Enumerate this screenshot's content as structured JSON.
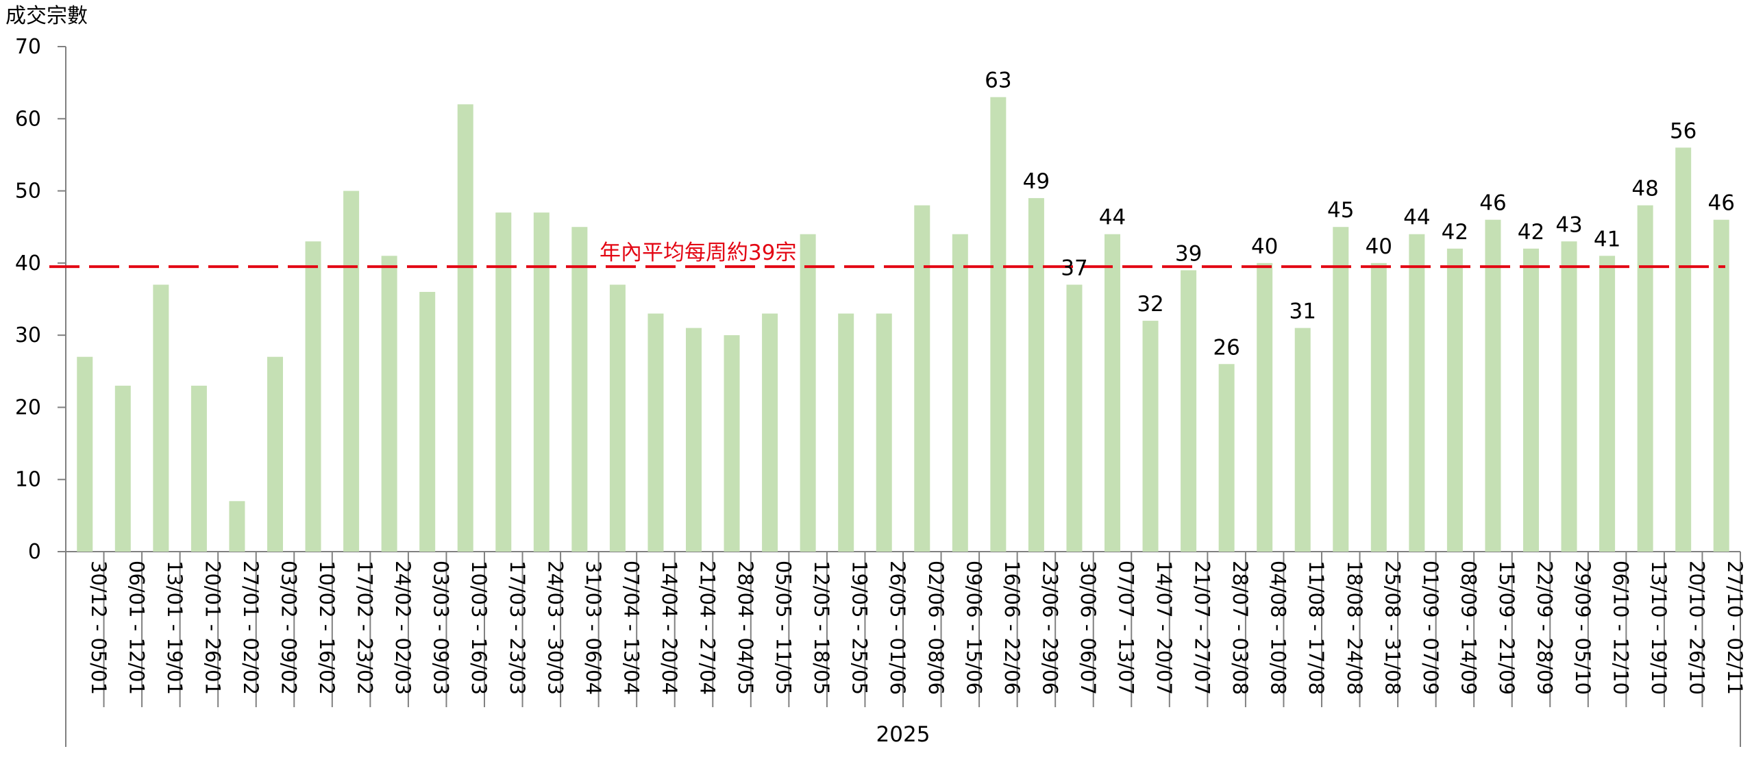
{
  "chart_data": {
    "type": "bar",
    "ylabel": "成交宗數",
    "xgroup_label": "2025",
    "ylim": [
      0,
      70
    ],
    "yticks": [
      0,
      10,
      20,
      30,
      40,
      50,
      60,
      70
    ],
    "grid": false,
    "categories": [
      "30/12 - 05/01",
      "06/01 - 12/01",
      "13/01 - 19/01",
      "20/01 - 26/01",
      "27/01 - 02/02",
      "03/02 - 09/02",
      "10/02 - 16/02",
      "17/02 - 23/02",
      "24/02 - 02/03",
      "03/03 - 09/03",
      "10/03 - 16/03",
      "17/03 - 23/03",
      "24/03 - 30/03",
      "31/03 - 06/04",
      "07/04 - 13/04",
      "14/04 - 20/04",
      "21/04 - 27/04",
      "28/04 - 04/05",
      "05/05 - 11/05",
      "12/05 - 18/05",
      "19/05 - 25/05",
      "26/05 - 01/06",
      "02/06 - 08/06",
      "09/06 - 15/06",
      "16/06 - 22/06",
      "23/06 - 29/06",
      "30/06 - 06/07",
      "07/07 - 13/07",
      "14/07 - 20/07",
      "21/07 - 27/07",
      "28/07 - 03/08",
      "04/08 - 10/08",
      "11/08 - 17/08",
      "18/08 - 24/08",
      "25/08 - 31/08",
      "01/09 - 07/09",
      "08/09 - 14/09",
      "15/09 - 21/09",
      "22/09 - 28/09",
      "29/09 - 05/10",
      "06/10 - 12/10",
      "13/10 - 19/10",
      "20/10 - 26/10",
      "27/10 - 02/11"
    ],
    "values": [
      27,
      23,
      37,
      23,
      7,
      27,
      43,
      50,
      41,
      36,
      62,
      47,
      47,
      45,
      37,
      33,
      31,
      30,
      33,
      44,
      33,
      33,
      48,
      44,
      63,
      49,
      37,
      44,
      32,
      39,
      26,
      40,
      31,
      45,
      40,
      44,
      42,
      46,
      42,
      43,
      41,
      48,
      56,
      46
    ],
    "data_labels": [
      null,
      null,
      null,
      null,
      null,
      null,
      null,
      null,
      null,
      null,
      null,
      null,
      null,
      null,
      null,
      null,
      null,
      null,
      null,
      null,
      null,
      null,
      null,
      null,
      "63",
      "49",
      "37",
      "44",
      "32",
      "39",
      "26",
      "40",
      "31",
      "45",
      "40",
      "44",
      "42",
      "46",
      "42",
      "43",
      "41",
      "48",
      "56",
      "46"
    ],
    "reference_line": {
      "value": 39.5,
      "label": "年內平均每周約39宗",
      "color": "#e30613",
      "style": "dashed"
    },
    "bar_color": "#c5e0b4",
    "axis_color": "#808080"
  }
}
